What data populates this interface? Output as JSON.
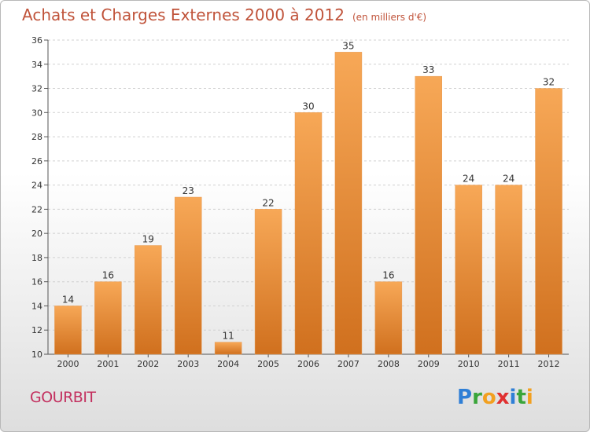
{
  "title": "Achats et Charges Externes 2000 à 2012",
  "subtitle": "(en milliers d'€)",
  "commune": "GOURBIT",
  "brand": {
    "letters": [
      "P",
      "r",
      "o",
      "x",
      "i",
      "t",
      "i"
    ],
    "colors": [
      "#2f7fd6",
      "#3aa53a",
      "#f2a020",
      "#e03030",
      "#2f7fd6",
      "#3aa53a",
      "#f2a020"
    ]
  },
  "colors": {
    "bar_top": "#f7a857",
    "bar_bottom": "#d0701e",
    "title": "#c0533a",
    "commune": "#c3305f"
  },
  "chart_data": {
    "type": "bar",
    "title": "Achats et Charges Externes 2000 à 2012",
    "subtitle": "(en milliers d'€)",
    "xlabel": "",
    "ylabel": "",
    "categories": [
      "2000",
      "2001",
      "2002",
      "2003",
      "2004",
      "2005",
      "2006",
      "2007",
      "2008",
      "2009",
      "2010",
      "2011",
      "2012"
    ],
    "values": [
      14,
      16,
      19,
      23,
      11,
      22,
      30,
      35,
      16,
      33,
      24,
      24,
      32
    ],
    "ylim": [
      10,
      36
    ],
    "yticks": [
      10,
      12,
      14,
      16,
      18,
      20,
      22,
      24,
      26,
      28,
      30,
      32,
      34,
      36
    ],
    "grid": true,
    "legend": "none"
  }
}
